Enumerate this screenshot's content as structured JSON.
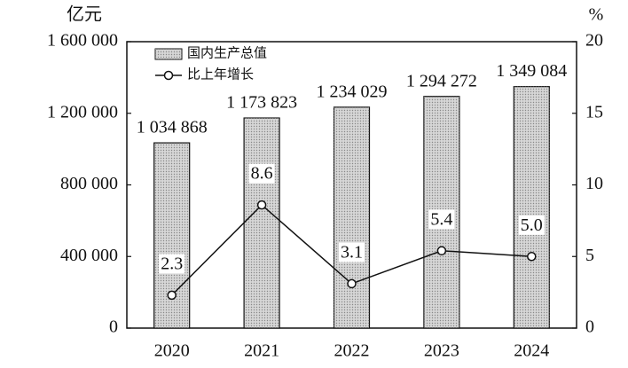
{
  "chart_data": {
    "type": "bar",
    "categories": [
      "2020",
      "2021",
      "2022",
      "2023",
      "2024"
    ],
    "series": [
      {
        "name": "国内生产总值",
        "type": "bar",
        "color": "#d6d6d6",
        "values": [
          1034868,
          1173823,
          1234029,
          1294272,
          1349084
        ],
        "value_labels": [
          "1 034 868",
          "1 173 823",
          "1 234 029",
          "1 294 272",
          "1 349 084"
        ]
      },
      {
        "name": "比上年增长",
        "type": "line",
        "axis": "y2",
        "color": "#111111",
        "values": [
          2.3,
          8.6,
          3.1,
          5.4,
          5.0
        ],
        "value_labels": [
          "2.3",
          "8.6",
          "3.1",
          "5.4",
          "5.0"
        ]
      }
    ],
    "y_label": "亿元",
    "y2_label": "%",
    "ylim": [
      0,
      1600000
    ],
    "yticks": [
      0,
      {
        "value": 400000,
        "label": "400 000"
      },
      {
        "value": 800000,
        "label": "800 000"
      },
      {
        "value": 1200000,
        "label": "1 200 000"
      },
      {
        "value": 1600000,
        "label": "1 600 000"
      }
    ],
    "y2lim": [
      0,
      20
    ],
    "y2ticks": [
      0,
      5,
      10,
      15,
      20
    ],
    "legend": "upper-left"
  }
}
